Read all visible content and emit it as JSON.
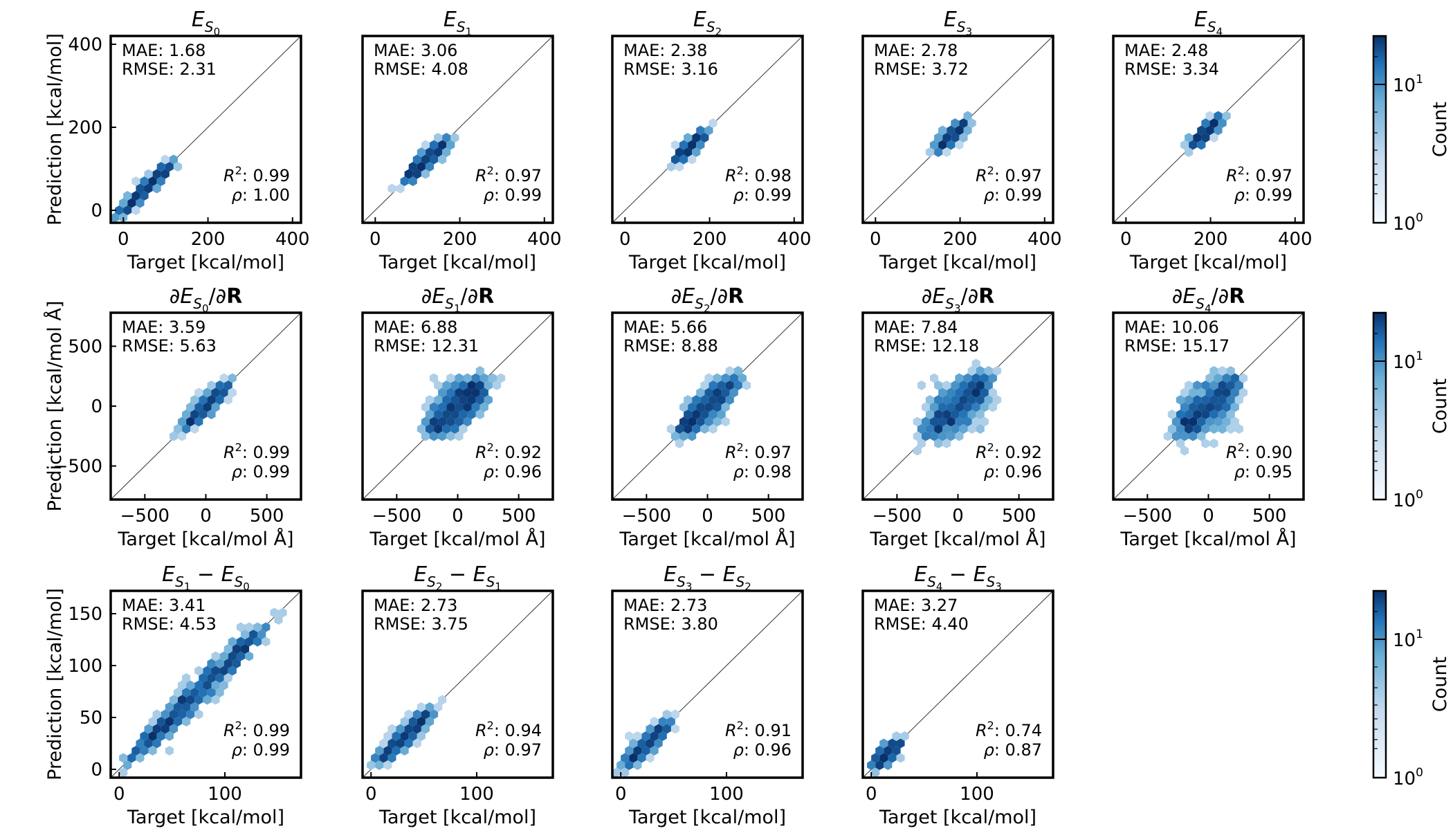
{
  "figure": {
    "colorbar_label": "Count",
    "colorbar_ticks": [
      "10",
      "10"
    ],
    "colorbar_tick_exponents": [
      "1",
      "0"
    ],
    "colors": {
      "dark": "#08306b",
      "mid": "#2171b5",
      "light": "#c6dbef",
      "axis": "#000000"
    }
  },
  "chart_data": [
    {
      "type": "scatter",
      "row": 0,
      "title": {
        "base": "E",
        "sub": "S",
        "subsub": "0"
      },
      "xlabel": "Target [kcal/mol]",
      "ylabel": "Prediction [kcal/mol]",
      "show_ylabel": true,
      "lim": [
        -30,
        420
      ],
      "xticks": [
        0,
        200,
        400
      ],
      "yticks": [
        0,
        200,
        400
      ],
      "yticks_shown": true,
      "mae": "1.68",
      "rmse": "2.31",
      "r2": "0.99",
      "rho": "1.00",
      "cloud": {
        "center": 50,
        "half_length": 75,
        "spread": 7
      }
    },
    {
      "type": "scatter",
      "row": 0,
      "title": {
        "base": "E",
        "sub": "S",
        "subsub": "1"
      },
      "xlabel": "Target [kcal/mol]",
      "ylabel": "",
      "show_ylabel": false,
      "lim": [
        -30,
        420
      ],
      "xticks": [
        0,
        200,
        400
      ],
      "yticks": [],
      "yticks_shown": false,
      "mae": "3.06",
      "rmse": "4.08",
      "r2": "0.97",
      "rho": "0.99",
      "cloud": {
        "center": 120,
        "half_length": 60,
        "spread": 9
      }
    },
    {
      "type": "scatter",
      "row": 0,
      "title": {
        "base": "E",
        "sub": "S",
        "subsub": "2"
      },
      "xlabel": "Target [kcal/mol]",
      "ylabel": "",
      "show_ylabel": false,
      "lim": [
        -30,
        420
      ],
      "xticks": [
        0,
        200,
        400
      ],
      "yticks": [],
      "yticks_shown": false,
      "mae": "2.38",
      "rmse": "3.16",
      "r2": "0.98",
      "rho": "0.99",
      "cloud": {
        "center": 155,
        "half_length": 42,
        "spread": 7
      }
    },
    {
      "type": "scatter",
      "row": 0,
      "title": {
        "base": "E",
        "sub": "S",
        "subsub": "3"
      },
      "xlabel": "Target [kcal/mol]",
      "ylabel": "",
      "show_ylabel": false,
      "lim": [
        -30,
        420
      ],
      "xticks": [
        0,
        200,
        400
      ],
      "yticks": [],
      "yticks_shown": false,
      "mae": "2.78",
      "rmse": "3.72",
      "r2": "0.97",
      "rho": "0.99",
      "cloud": {
        "center": 180,
        "half_length": 42,
        "spread": 8
      }
    },
    {
      "type": "scatter",
      "row": 0,
      "title": {
        "base": "E",
        "sub": "S",
        "subsub": "4"
      },
      "xlabel": "Target [kcal/mol]",
      "ylabel": "",
      "show_ylabel": false,
      "lim": [
        -30,
        420
      ],
      "xticks": [
        0,
        200,
        400
      ],
      "yticks": [],
      "yticks_shown": false,
      "mae": "2.48",
      "rmse": "3.34",
      "r2": "0.97",
      "rho": "0.99",
      "cloud": {
        "center": 190,
        "half_length": 42,
        "spread": 8
      }
    },
    {
      "type": "scatter",
      "row": 1,
      "title": {
        "base": "E",
        "sub": "S",
        "subsub": "0",
        "gradient": true
      },
      "xlabel": "Target [kcal/mol Å]",
      "ylabel": "Prediction [kcal/mol Å]",
      "show_ylabel": true,
      "lim": [
        -780,
        780
      ],
      "xticks": [
        -500,
        0,
        500
      ],
      "yticks": [
        -500,
        0,
        500
      ],
      "yticks_shown": true,
      "mae": "3.59",
      "rmse": "5.63",
      "r2": "0.99",
      "rho": "0.99",
      "cloud": {
        "center": 0,
        "half_length": 230,
        "spread": 35
      }
    },
    {
      "type": "scatter",
      "row": 1,
      "title": {
        "base": "E",
        "sub": "S",
        "subsub": "1",
        "gradient": true
      },
      "xlabel": "Target [kcal/mol Å]",
      "ylabel": "",
      "show_ylabel": false,
      "lim": [
        -780,
        780
      ],
      "xticks": [
        -500,
        0,
        500
      ],
      "yticks": [],
      "yticks_shown": false,
      "mae": "6.88",
      "rmse": "12.31",
      "r2": "0.92",
      "rho": "0.96",
      "cloud": {
        "center": 0,
        "half_length": 260,
        "spread": 90
      }
    },
    {
      "type": "scatter",
      "row": 1,
      "title": {
        "base": "E",
        "sub": "S",
        "subsub": "2",
        "gradient": true
      },
      "xlabel": "Target [kcal/mol Å]",
      "ylabel": "",
      "show_ylabel": false,
      "lim": [
        -780,
        780
      ],
      "xticks": [
        -500,
        0,
        500
      ],
      "yticks": [],
      "yticks_shown": false,
      "mae": "5.66",
      "rmse": "8.88",
      "r2": "0.97",
      "rho": "0.98",
      "cloud": {
        "center": 0,
        "half_length": 280,
        "spread": 65
      }
    },
    {
      "type": "scatter",
      "row": 1,
      "title": {
        "base": "E",
        "sub": "S",
        "subsub": "3",
        "gradient": true
      },
      "xlabel": "Target [kcal/mol Å]",
      "ylabel": "",
      "show_ylabel": false,
      "lim": [
        -780,
        780
      ],
      "xticks": [
        -500,
        0,
        500
      ],
      "yticks": [],
      "yticks_shown": false,
      "mae": "7.84",
      "rmse": "12.18",
      "r2": "0.92",
      "rho": "0.96",
      "cloud": {
        "center": 0,
        "half_length": 290,
        "spread": 95
      }
    },
    {
      "type": "scatter",
      "row": 1,
      "title": {
        "base": "E",
        "sub": "S",
        "subsub": "4",
        "gradient": true
      },
      "xlabel": "Target [kcal/mol Å]",
      "ylabel": "",
      "show_ylabel": false,
      "lim": [
        -780,
        780
      ],
      "xticks": [
        -500,
        0,
        500
      ],
      "yticks": [],
      "yticks_shown": false,
      "mae": "10.06",
      "rmse": "15.17",
      "r2": "0.90",
      "rho": "0.95",
      "cloud": {
        "center": 0,
        "half_length": 270,
        "spread": 100
      }
    },
    {
      "type": "scatter",
      "row": 2,
      "title": {
        "base": "E",
        "sub": "S",
        "subsub": "1",
        "minus_sub": "S",
        "minus_subsub": "0",
        "difference": true
      },
      "xlabel": "Target [kcal/mol]",
      "ylabel": "Prediction [kcal/mol]",
      "show_ylabel": true,
      "lim": [
        -8,
        172
      ],
      "xticks": [
        0,
        100
      ],
      "yticks": [
        0,
        50,
        100,
        150
      ],
      "yticks_shown": true,
      "mae": "3.41",
      "rmse": "4.53",
      "r2": "0.99",
      "rho": "0.99",
      "cloud": {
        "center": 75,
        "half_length": 75,
        "spread": 6
      }
    },
    {
      "type": "scatter",
      "row": 2,
      "title": {
        "base": "E",
        "sub": "S",
        "subsub": "2",
        "minus_sub": "S",
        "minus_subsub": "1",
        "difference": true
      },
      "xlabel": "Target [kcal/mol]",
      "ylabel": "",
      "show_ylabel": false,
      "lim": [
        -8,
        172
      ],
      "xticks": [
        0,
        100
      ],
      "yticks": [],
      "yticks_shown": false,
      "mae": "2.73",
      "rmse": "3.75",
      "r2": "0.94",
      "rho": "0.97",
      "cloud": {
        "center": 32,
        "half_length": 30,
        "spread": 4
      }
    },
    {
      "type": "scatter",
      "row": 2,
      "title": {
        "base": "E",
        "sub": "S",
        "subsub": "3",
        "minus_sub": "S",
        "minus_subsub": "2",
        "difference": true
      },
      "xlabel": "Target [kcal/mol]",
      "ylabel": "",
      "show_ylabel": false,
      "lim": [
        -8,
        172
      ],
      "xticks": [
        0,
        100
      ],
      "yticks": [],
      "yticks_shown": false,
      "mae": "2.73",
      "rmse": "3.80",
      "r2": "0.91",
      "rho": "0.96",
      "cloud": {
        "center": 25,
        "half_length": 25,
        "spread": 4
      }
    },
    {
      "type": "scatter",
      "row": 2,
      "title": {
        "base": "E",
        "sub": "S",
        "subsub": "4",
        "minus_sub": "S",
        "minus_subsub": "3",
        "difference": true
      },
      "xlabel": "Target [kcal/mol]",
      "ylabel": "",
      "show_ylabel": false,
      "lim": [
        -8,
        172
      ],
      "xticks": [
        0,
        100
      ],
      "yticks": [],
      "yticks_shown": false,
      "mae": "3.27",
      "rmse": "4.40",
      "r2": "0.74",
      "rho": "0.87",
      "cloud": {
        "center": 15,
        "half_length": 15,
        "spread": 4
      }
    }
  ]
}
